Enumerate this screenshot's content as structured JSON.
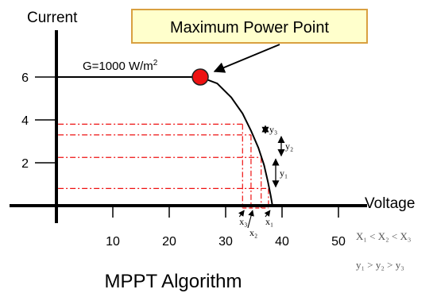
{
  "chart_data": {
    "type": "line",
    "title": "MPPT Algorithm",
    "xlabel": "Voltage",
    "ylabel": "Current",
    "x_ticks": [
      10,
      20,
      30,
      40,
      50
    ],
    "y_ticks": [
      2,
      4,
      6
    ],
    "xlim": [
      0,
      50
    ],
    "ylim": [
      0,
      6.5
    ],
    "grid": false,
    "series": [
      {
        "name": "G=1000 W/m2",
        "x": [
          0,
          25.5,
          28.5,
          31,
          33,
          34.5,
          35.8,
          36.8,
          37.5,
          38,
          38.3
        ],
        "y": [
          6.0,
          6.0,
          5.7,
          5.05,
          4.3,
          3.5,
          2.7,
          1.9,
          1.1,
          0.45,
          0.0
        ]
      }
    ],
    "maximum_power_point": {
      "x": 25.5,
      "y": 6.0,
      "label": "Maximum Power Point",
      "color": "#ee1111"
    },
    "operating_points": [
      {
        "voltage": 33,
        "current": 3.8,
        "label": "y₃"
      },
      {
        "voltage": 34.5,
        "current": 3.3,
        "label": "y₂"
      },
      {
        "voltage": 36.3,
        "current": 2.25,
        "label": "y₁"
      },
      {
        "voltage": 37.6,
        "current": 0.8,
        "label": ""
      }
    ],
    "voltage_labels": [
      "x₃",
      "x₂",
      "x₁"
    ],
    "irradiance_label": {
      "text": "G=1000 W/m",
      "superscript": "2"
    },
    "relations": [
      "X₁ < X₂ < X₃",
      "y₁ > y₂ > y₃"
    ],
    "guide_color": "#ee1111",
    "line_color": "#000000"
  }
}
